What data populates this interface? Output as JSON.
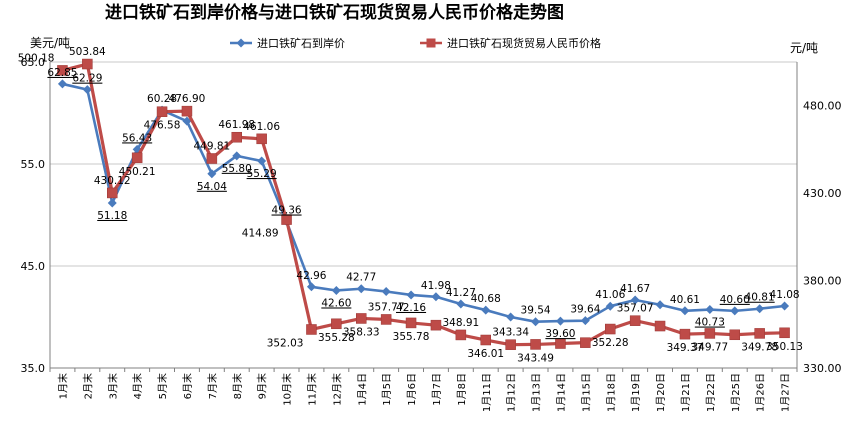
{
  "chart_data": {
    "type": "line",
    "title": "进口铁矿石到岸价格与进口铁矿石现货贸易人民币价格走势图",
    "ylabel_left": "美元/吨",
    "ylabel_right": "元/吨",
    "y_left_range": [
      35.0,
      65.0
    ],
    "y_left_ticks": [
      "65.0",
      "55.0",
      "45.0",
      "35.0"
    ],
    "y_right_range": [
      330.0,
      505.0
    ],
    "y_right_ticks": [
      "480.00",
      "430.00",
      "380.00",
      "330.00"
    ],
    "legend_position": "top",
    "gridlines": true,
    "categories": [
      "1月末",
      "2月末",
      "3月末",
      "4月末",
      "5月末",
      "6月末",
      "7月末",
      "8月末",
      "9月末",
      "10月末",
      "11月末",
      "12月末",
      "1月4日",
      "1月5日",
      "1月6日",
      "1月7日",
      "1月8日",
      "1月11日",
      "1月12日",
      "1月13日",
      "1月14日",
      "1月15日",
      "1月18日",
      "1月19日",
      "1月20日",
      "1月21日",
      "1月22日",
      "1月25日",
      "1月26日",
      "1月27日"
    ],
    "series": [
      {
        "name": "进口铁矿石到岸价",
        "axis": "left",
        "color": "#4a7bbd",
        "marker": "diamond",
        "values": [
          62.85,
          62.29,
          51.18,
          56.43,
          60.28,
          59.2,
          54.04,
          55.8,
          55.29,
          49.36,
          42.96,
          42.6,
          42.77,
          42.5,
          42.16,
          41.98,
          41.27,
          40.68,
          40.0,
          39.54,
          39.6,
          39.64,
          41.06,
          41.67,
          41.2,
          40.61,
          40.73,
          40.6,
          40.81,
          41.08
        ],
        "labels": [
          "62.85",
          "62.29",
          "51.18",
          "56.43",
          "60.28",
          "",
          "54.04",
          "55.80",
          "55.29",
          "49.36",
          "42.96",
          "42.60",
          "42.77",
          "",
          "42.16",
          "41.98",
          "41.27",
          "40.68",
          "",
          "39.54",
          "39.60",
          "39.64",
          "41.06",
          "41.67",
          "",
          "40.61",
          "40.73",
          "40.60",
          "40.81",
          "41.08"
        ]
      },
      {
        "name": "进口铁矿石现货贸易人民币价格",
        "axis": "right",
        "color": "#be4b48",
        "marker": "square",
        "values": [
          500.18,
          503.84,
          430.12,
          450.21,
          476.58,
          476.9,
          449.81,
          461.98,
          461.06,
          414.89,
          352.03,
          355.28,
          358.33,
          357.77,
          355.78,
          354.5,
          348.91,
          346.01,
          343.34,
          343.49,
          344.0,
          344.5,
          352.28,
          357.07,
          354.0,
          349.37,
          349.77,
          349.0,
          349.78,
          350.13
        ],
        "labels": [
          "500.18",
          "503.84",
          "430.12",
          "450.21",
          "476.58",
          "476.90",
          "449.81",
          "461.98",
          "461.06",
          "414.89",
          "352.03",
          "355.28",
          "358.33",
          "357.77",
          "355.78",
          "",
          "348.91",
          "346.01",
          "343.34",
          "343.49",
          "",
          "",
          "352.28",
          "357.07",
          "",
          "349.37",
          "349.77",
          "",
          "349.78",
          "350.13"
        ]
      }
    ]
  }
}
